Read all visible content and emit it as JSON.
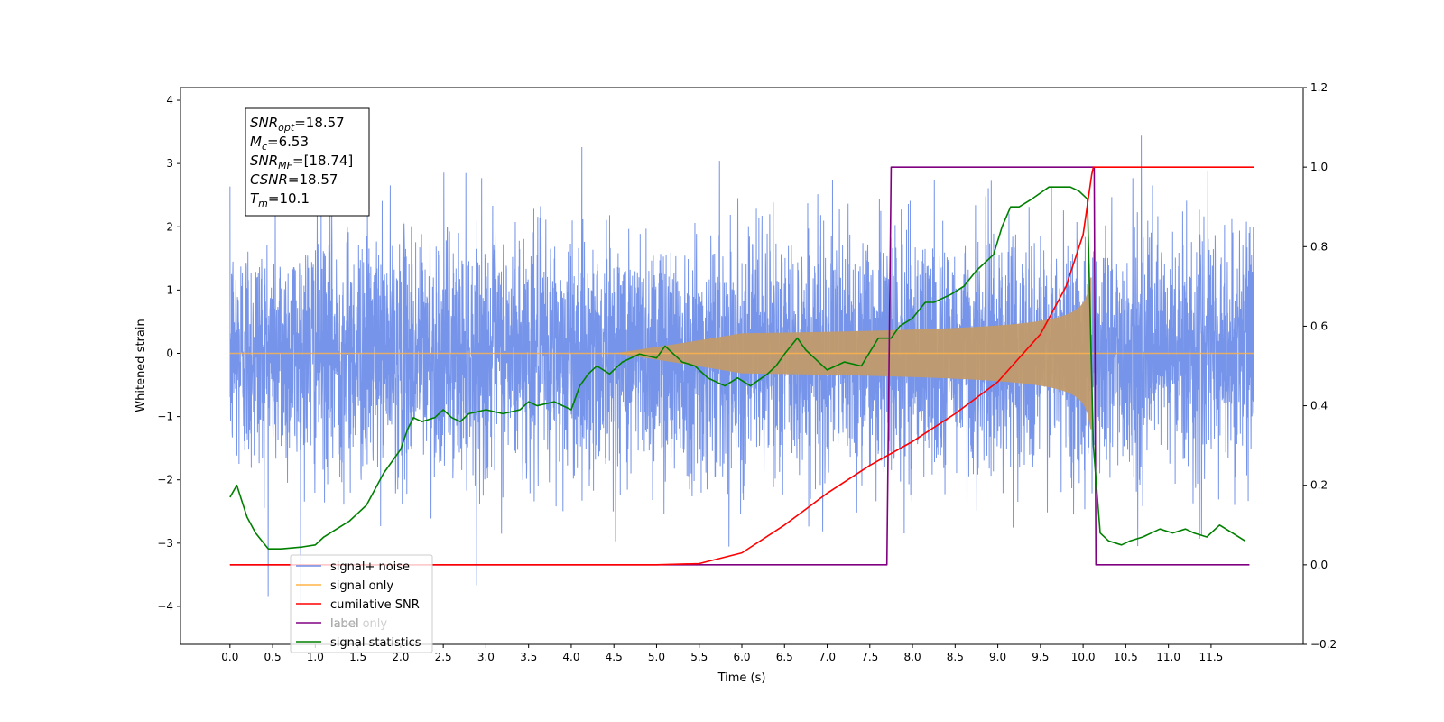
{
  "chart_data": {
    "type": "line",
    "xlabel": "Time (s)",
    "ylabel": "Whitened strain",
    "x_range": [
      -0.58,
      12.58
    ],
    "ylim_left": [
      -4.6,
      4.2
    ],
    "ylim_right": [
      -0.2,
      1.2
    ],
    "x_ticks": [
      0.0,
      0.5,
      1.0,
      1.5,
      2.0,
      2.5,
      3.0,
      3.5,
      4.0,
      4.5,
      5.0,
      5.5,
      6.0,
      6.5,
      7.0,
      7.5,
      8.0,
      8.5,
      9.0,
      9.5,
      10.0,
      10.5,
      11.0,
      11.5
    ],
    "x_tick_labels": [
      "0.0",
      "0.5",
      "1.0",
      "1.5",
      "2.0",
      "2.5",
      "3.0",
      "3.5",
      "4.0",
      "4.5",
      "5.0",
      "5.5",
      "6.0",
      "6.5",
      "7.0",
      "7.5",
      "8.0",
      "8.5",
      "9.0",
      "9.5",
      "10.0",
      "10.5",
      "11.0",
      "11.5"
    ],
    "y_left_ticks": [
      -4,
      -3,
      -2,
      -1,
      0,
      1,
      2,
      3,
      4
    ],
    "y_left_tick_labels": [
      "−4",
      "−3",
      "−2",
      "−1",
      "0",
      "1",
      "2",
      "3",
      "4"
    ],
    "y_right_ticks": [
      -0.2,
      0.0,
      0.2,
      0.4,
      0.6,
      0.8,
      1.0,
      1.2
    ],
    "y_right_tick_labels": [
      "−0.2",
      "0.0",
      "0.2",
      "0.4",
      "0.6",
      "0.8",
      "1.0",
      "1.2"
    ],
    "grid": false,
    "legend_position": "lower-left",
    "series": [
      {
        "name": "signal+ noise",
        "axis": "left",
        "color": "#6f8ee8",
        "t_range": [
          0.0,
          12.0
        ],
        "amplitude_std": 0.95,
        "min": -4.1,
        "max": 3.8
      },
      {
        "name": "signal only",
        "axis": "left",
        "color": "#ffb347",
        "chirp_start": 4.5,
        "merger_time": 10.1,
        "peak_amplitude": 1.2
      },
      {
        "name": "cumilative SNR",
        "axis": "right",
        "color": "#ff0000",
        "x": [
          0.0,
          5.0,
          5.5,
          6.0,
          6.5,
          7.0,
          7.5,
          8.0,
          8.5,
          9.0,
          9.5,
          9.8,
          10.0,
          10.1,
          10.12,
          12.0
        ],
        "y": [
          0.0,
          0.0,
          0.003,
          0.03,
          0.1,
          0.18,
          0.25,
          0.31,
          0.38,
          0.46,
          0.58,
          0.7,
          0.83,
          0.98,
          1.0,
          1.0
        ]
      },
      {
        "name": "label",
        "axis": "right",
        "color": "#800080",
        "x": [
          0.0,
          7.7,
          7.75,
          10.13,
          10.15,
          11.95
        ],
        "y": [
          0.0,
          0.0,
          1.0,
          1.0,
          0.0,
          0.0
        ]
      },
      {
        "name": "label only",
        "axis": "right",
        "color": "#c9c9c9",
        "x": [],
        "y": []
      },
      {
        "name": "signal statistics",
        "axis": "right",
        "color": "#008000",
        "x": [
          0.0,
          0.08,
          0.2,
          0.3,
          0.45,
          0.6,
          0.75,
          0.85,
          1.0,
          1.1,
          1.25,
          1.4,
          1.5,
          1.6,
          1.7,
          1.8,
          1.9,
          2.0,
          2.08,
          2.15,
          2.25,
          2.4,
          2.5,
          2.6,
          2.7,
          2.8,
          3.0,
          3.2,
          3.4,
          3.5,
          3.6,
          3.8,
          4.0,
          4.1,
          4.2,
          4.3,
          4.45,
          4.6,
          4.8,
          5.0,
          5.1,
          5.2,
          5.3,
          5.45,
          5.6,
          5.8,
          5.95,
          6.1,
          6.3,
          6.4,
          6.5,
          6.65,
          6.75,
          6.85,
          7.0,
          7.2,
          7.4,
          7.6,
          7.75,
          7.85,
          8.0,
          8.15,
          8.25,
          8.45,
          8.6,
          8.75,
          8.95,
          9.05,
          9.15,
          9.25,
          9.4,
          9.6,
          9.75,
          9.85,
          9.95,
          10.05,
          10.12,
          10.2,
          10.3,
          10.45,
          10.55,
          10.7,
          10.9,
          11.05,
          11.2,
          11.3,
          11.45,
          11.6,
          11.75,
          11.9
        ],
        "y": [
          0.17,
          0.2,
          0.12,
          0.08,
          0.04,
          0.04,
          0.043,
          0.045,
          0.05,
          0.07,
          0.09,
          0.11,
          0.13,
          0.15,
          0.19,
          0.23,
          0.26,
          0.29,
          0.34,
          0.37,
          0.36,
          0.37,
          0.39,
          0.37,
          0.36,
          0.38,
          0.39,
          0.38,
          0.39,
          0.41,
          0.4,
          0.41,
          0.39,
          0.45,
          0.48,
          0.5,
          0.48,
          0.51,
          0.53,
          0.52,
          0.55,
          0.53,
          0.51,
          0.5,
          0.47,
          0.45,
          0.47,
          0.45,
          0.48,
          0.5,
          0.53,
          0.57,
          0.54,
          0.52,
          0.49,
          0.51,
          0.5,
          0.57,
          0.57,
          0.6,
          0.62,
          0.66,
          0.66,
          0.68,
          0.7,
          0.74,
          0.78,
          0.85,
          0.9,
          0.9,
          0.92,
          0.95,
          0.95,
          0.95,
          0.94,
          0.92,
          0.3,
          0.08,
          0.06,
          0.05,
          0.06,
          0.07,
          0.09,
          0.08,
          0.09,
          0.08,
          0.07,
          0.1,
          0.08,
          0.06
        ]
      }
    ],
    "annotation": {
      "lines": [
        {
          "sym": "SNR",
          "sub": "opt",
          "rest": "=18.57"
        },
        {
          "sym": "M",
          "sub": "c",
          "rest": "=6.53"
        },
        {
          "sym": "SNR",
          "sub": "MF",
          "rest": "=[18.74]"
        },
        {
          "sym": "CSNR",
          "sub": "",
          "rest": "=18.57"
        },
        {
          "sym": "T",
          "sub": "m",
          "rest": "=10.1"
        }
      ]
    }
  }
}
